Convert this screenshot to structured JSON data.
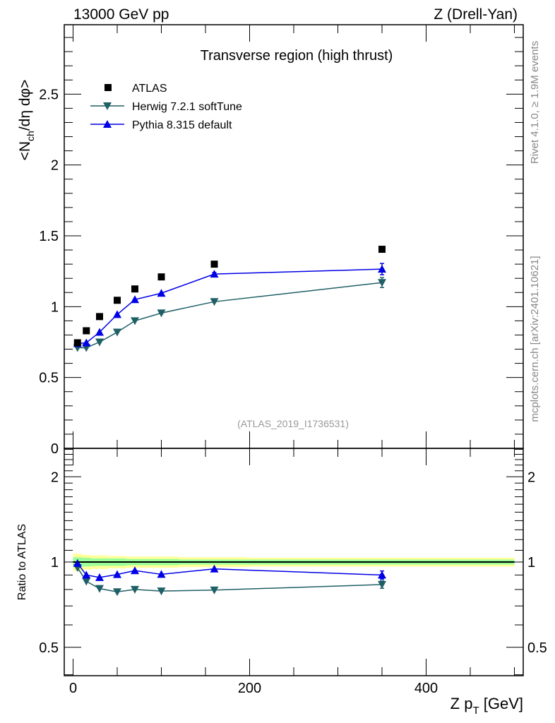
{
  "header": {
    "left": "13000 GeV pp",
    "right": "Z (Drell-Yan)"
  },
  "side_labels": {
    "rivet": "Rivet 4.1.0, ≥ 1.9M events",
    "mcplots": "mcplots.cern.ch [arXiv:2401.10621]"
  },
  "colors": {
    "atlas": "#000000",
    "herwig": "#1f5f66",
    "pythia": "#0000e6",
    "band_yellow": "#ffff99",
    "band_green": "#99ff99"
  },
  "chart_data": [
    {
      "type": "scatter",
      "title": "Transverse region (high thrust)",
      "ylabel": "<N_ch/dη dφ>",
      "ylabel_main": "<N",
      "ylabel_sub": "ch",
      "ylabel_rest": "/dη dφ>",
      "xlim": [
        -10,
        510
      ],
      "ylim": [
        0,
        2.99
      ],
      "yticks": [
        0,
        0.5,
        1,
        1.5,
        2,
        2.5
      ],
      "ytick_labels": [
        "0",
        "0.5",
        "1",
        "1.5",
        "2",
        "2.5"
      ],
      "watermark": "(ATLAS_2019_I1736531)",
      "legend_position": "top-left",
      "x": [
        5,
        15,
        30,
        50,
        70,
        100,
        160,
        350
      ],
      "series": [
        {
          "name": "ATLAS",
          "marker": "square",
          "values": [
            0.745,
            0.83,
            0.93,
            1.045,
            1.125,
            1.21,
            1.3,
            1.405
          ]
        },
        {
          "name": "Herwig 7.2.1 softTune",
          "marker": "triangle-down",
          "values": [
            0.71,
            0.71,
            0.75,
            0.82,
            0.9,
            0.955,
            1.035,
            1.17
          ],
          "errors": [
            0,
            0,
            0,
            0,
            0,
            0,
            0,
            0.035
          ]
        },
        {
          "name": "Pythia 8.315 default",
          "marker": "triangle-up",
          "values": [
            0.74,
            0.745,
            0.82,
            0.945,
            1.05,
            1.095,
            1.23,
            1.265
          ],
          "errors": [
            0,
            0,
            0,
            0,
            0,
            0,
            0.012,
            0.04
          ]
        }
      ]
    },
    {
      "type": "scatter",
      "ylabel": "Ratio to ATLAS",
      "xlabel_main": "Z p",
      "xlabel_sub": "T",
      "xlabel_rest": " [GeV]",
      "xlabel": "Z p_T [GeV]",
      "yscale": "log",
      "xlim": [
        -10,
        510
      ],
      "ylim": [
        0.397,
        2.52
      ],
      "yticks": [
        0.5,
        1,
        2
      ],
      "ytick_labels": [
        "0.5",
        "1",
        "2"
      ],
      "xticks": [
        0,
        200,
        400
      ],
      "xtick_labels": [
        "0",
        "200",
        "400"
      ],
      "bin_edges": [
        0,
        10,
        20,
        40,
        60,
        80,
        120,
        200,
        500
      ],
      "band_yellow_halfwidth": [
        0.07,
        0.06,
        0.055,
        0.05,
        0.045,
        0.045,
        0.04,
        0.035
      ],
      "band_green_halfwidth": [
        0.04,
        0.035,
        0.03,
        0.03,
        0.025,
        0.025,
        0.02,
        0.02
      ],
      "x": [
        5,
        15,
        30,
        50,
        70,
        100,
        160,
        350
      ],
      "series": [
        {
          "name": "Herwig 7.2.1 softTune",
          "values": [
            0.955,
            0.855,
            0.806,
            0.785,
            0.8,
            0.79,
            0.796,
            0.833
          ],
          "errors": [
            0,
            0,
            0,
            0,
            0,
            0,
            0,
            0.025
          ]
        },
        {
          "name": "Pythia 8.315 default",
          "values": [
            0.99,
            0.9,
            0.882,
            0.904,
            0.933,
            0.905,
            0.946,
            0.9
          ],
          "errors": [
            0,
            0,
            0,
            0,
            0,
            0,
            0,
            0.03
          ]
        }
      ]
    }
  ]
}
